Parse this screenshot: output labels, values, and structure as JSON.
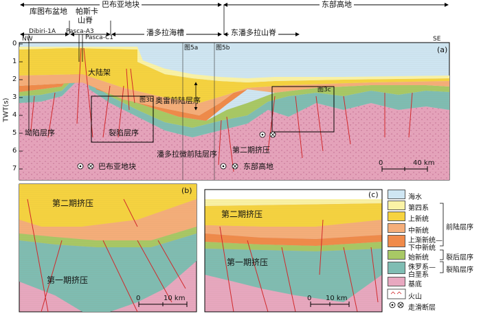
{
  "header": {
    "regions": [
      "库图布盆地",
      "帕斯卡",
      "山脊",
      "巴布亚地块",
      "潘多拉海槽",
      "东潘多拉山脊",
      "东部高地"
    ]
  },
  "panel_a": {
    "label": "(a)",
    "nw": "NW",
    "se": "SE",
    "wells": [
      "Dibiri-1A",
      "Pasca-A3",
      "Pasca-C1"
    ],
    "fig_refs": [
      "图5a",
      "图5b",
      "图3b",
      "图3c"
    ],
    "y_axis_label": "TWT(s)",
    "y_ticks": [
      "0",
      "1",
      "2",
      "3",
      "4",
      "5",
      "6",
      "7"
    ],
    "labels": {
      "continent": "大陆架",
      "oleh": "奥雷前陆层序",
      "sag": "坳陷层序",
      "rift": "裂陷层序",
      "pandora": "潘多拉微前陆层序",
      "phase2": "第二期挤压",
      "papua_block": "巴布亚地块",
      "east_high": "东部高地"
    },
    "scale": {
      "zero": "0",
      "end": "40 km"
    }
  },
  "panel_b": {
    "label": "(b)",
    "phase2": "第二期挤压",
    "phase1": "第一期挤压",
    "scale": {
      "zero": "0",
      "end": "10 km"
    }
  },
  "panel_c": {
    "label": "(c)",
    "phase2": "第二期挤压",
    "phase1": "第一期挤压",
    "scale": {
      "zero": "0",
      "end": "10 km"
    }
  },
  "legend": {
    "items": [
      {
        "label": "海水",
        "color": "#cfe6f3"
      },
      {
        "label": "第四系",
        "color": "#fbf3a6"
      },
      {
        "label": "上新统",
        "color": "#f6d340"
      },
      {
        "label": "中新统",
        "color": "#f5ae7a"
      },
      {
        "label": "上渐新统—",
        "color": "#f08a4a"
      },
      {
        "label": "下中新统",
        "color": "#f08a4a"
      },
      {
        "label": "始新统",
        "color": "#a8c865"
      },
      {
        "label": "侏罗系—",
        "color": "#7fbdb3"
      },
      {
        "label": "白垩系",
        "color": "#7fbdb3"
      },
      {
        "label": "基底",
        "color": "#e8a8c0"
      },
      {
        "label": "火山",
        "color": "#ffffff"
      },
      {
        "label": "走滑断层",
        "color": "#ffffff"
      }
    ],
    "groups": [
      "前陆层序",
      "裂后层序",
      "裂陷层序"
    ]
  }
}
